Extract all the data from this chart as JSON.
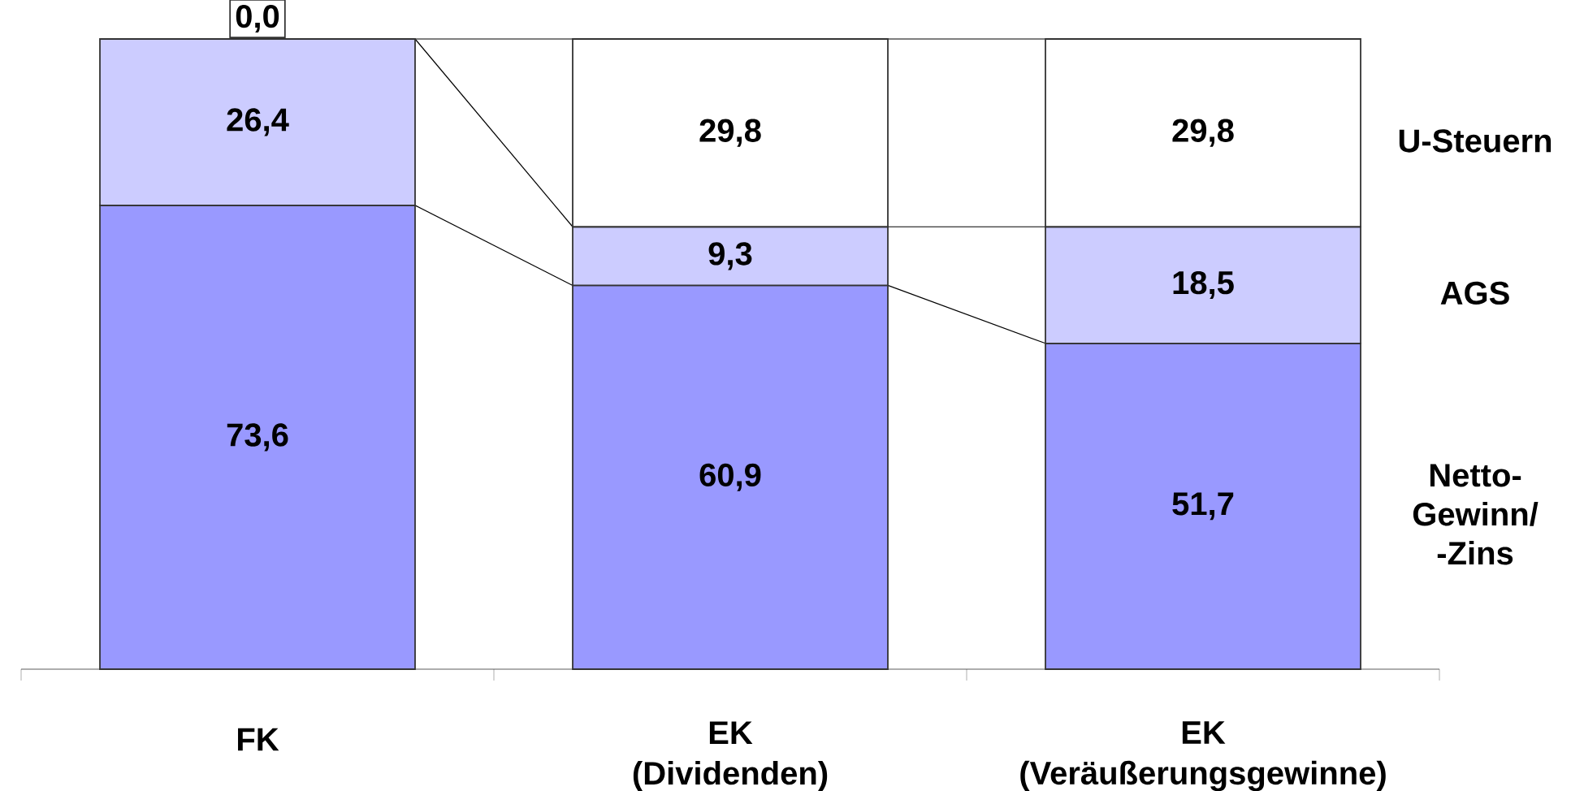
{
  "chart_data": {
    "type": "bar",
    "stacked": true,
    "categories": [
      "FK",
      "EK (Dividenden)",
      "EK (Veräußerungsgewinne)"
    ],
    "series": [
      {
        "name": "Netto-Gewinn/ -Zins",
        "color": "#9999ff",
        "values": [
          73.6,
          60.9,
          51.7
        ],
        "value_labels": [
          "73,6",
          "60,9",
          "51,7"
        ]
      },
      {
        "name": "AGS",
        "color": "#ccccff",
        "values": [
          26.4,
          9.3,
          18.5
        ],
        "value_labels": [
          "26,4",
          "9,3",
          "18,5"
        ]
      },
      {
        "name": "U-Steuern",
        "color": "#ffffff",
        "values": [
          0.0,
          29.8,
          29.8
        ],
        "value_labels": [
          "0,0",
          "29,8",
          "29,8"
        ]
      }
    ]
  }
}
